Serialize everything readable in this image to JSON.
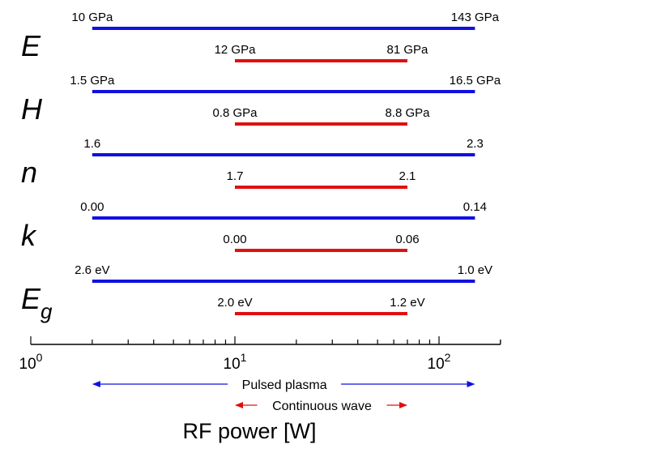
{
  "chart_data": {
    "type": "range-bar",
    "xscale": "log",
    "xlim": [
      1,
      200
    ],
    "xlabel": "RF power [W]",
    "xticks": [
      {
        "base": "10",
        "exp": "0"
      },
      {
        "base": "10",
        "exp": "1"
      },
      {
        "base": "10",
        "exp": "2"
      }
    ],
    "series": [
      {
        "name": "Pulsed plasma",
        "color": "#1010e0",
        "x_range": [
          2,
          150
        ]
      },
      {
        "name": "Continuous wave",
        "color": "#e01010",
        "x_range": [
          10,
          70
        ]
      }
    ],
    "properties": [
      {
        "symbol": "E",
        "sub": "",
        "pulsed": [
          "10 GPa",
          "143 GPa"
        ],
        "continuous": [
          "12 GPa",
          "81 GPa"
        ]
      },
      {
        "symbol": "H",
        "sub": "",
        "pulsed": [
          "1.5 GPa",
          "16.5 GPa"
        ],
        "continuous": [
          "0.8 GPa",
          "8.8 GPa"
        ]
      },
      {
        "symbol": "n",
        "sub": "",
        "pulsed": [
          "1.6",
          "2.3"
        ],
        "continuous": [
          "1.7",
          "2.1"
        ]
      },
      {
        "symbol": "k",
        "sub": "",
        "pulsed": [
          "0.00",
          "0.14"
        ],
        "continuous": [
          "0.00",
          "0.06"
        ]
      },
      {
        "symbol": "E",
        "sub": "g",
        "pulsed": [
          "2.6 eV",
          "1.0 eV"
        ],
        "continuous": [
          "2.0 eV",
          "1.2 eV"
        ]
      }
    ]
  }
}
